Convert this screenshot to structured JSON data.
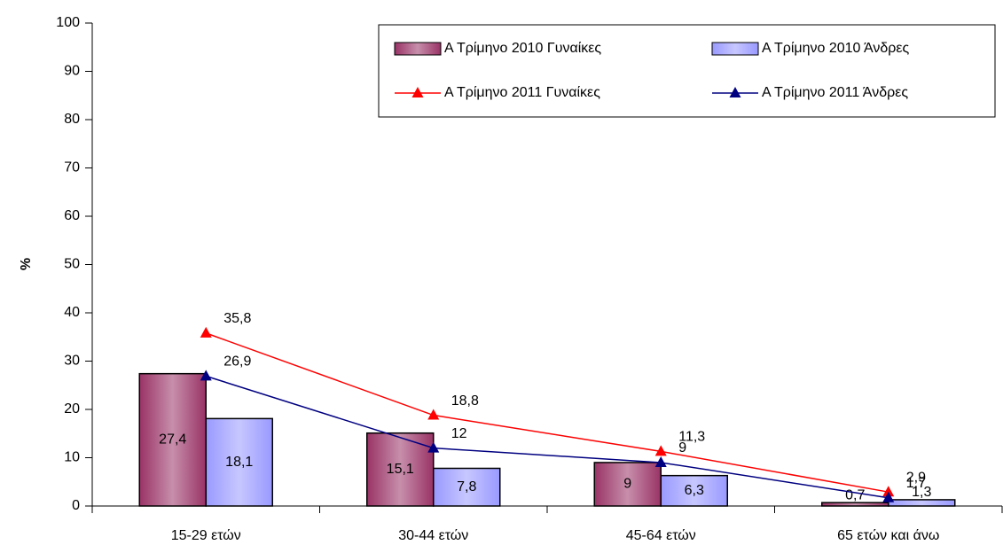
{
  "chart_data": {
    "type": "bar",
    "y_label": "%",
    "categories": [
      "15-29 ετών",
      "30-44 ετών",
      "45-64 ετών",
      "65 ετών και άνω"
    ],
    "series": [
      {
        "name": "Α Τρίμηνο 2010 Γυναίκες",
        "type": "bar",
        "color": "#993366",
        "values": [
          27.4,
          15.1,
          9,
          0.7
        ],
        "value_labels": [
          "27,4",
          "15,1",
          "9",
          "0,7"
        ]
      },
      {
        "name": "Α Τρίμηνο 2010 Άνδρες",
        "type": "bar",
        "color": "#9999ff",
        "values": [
          18.1,
          7.8,
          6.3,
          1.3
        ],
        "value_labels": [
          "18,1",
          "7,8",
          "6,3",
          "1,3"
        ]
      },
      {
        "name": "Α Τρίμηνο 2011 Γυναίκες",
        "type": "line",
        "color": "#ff0000",
        "values": [
          35.8,
          18.8,
          11.3,
          2.9
        ],
        "value_labels": [
          "35,8",
          "18,8",
          "11,3",
          "2,9"
        ]
      },
      {
        "name": "Α Τρίμηνο 2011 Άνδρες",
        "type": "line",
        "color": "#000080",
        "values": [
          26.9,
          12,
          9,
          1.7
        ],
        "value_labels": [
          "26,9",
          "12",
          "9",
          "1,7"
        ]
      }
    ],
    "ylim": [
      0,
      100
    ],
    "yticks": [
      0,
      10,
      20,
      30,
      40,
      50,
      60,
      70,
      80,
      90,
      100
    ],
    "grid": false,
    "legend": "top-right"
  }
}
